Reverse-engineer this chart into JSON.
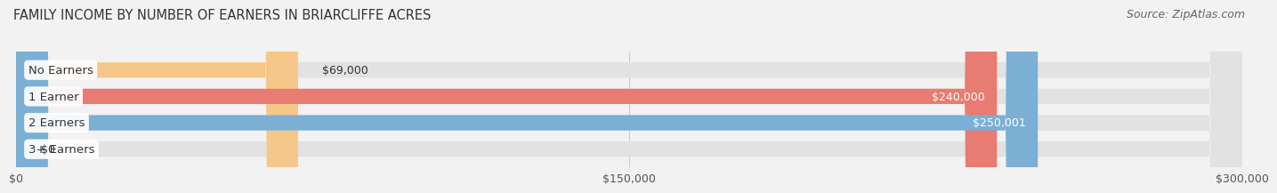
{
  "title": "FAMILY INCOME BY NUMBER OF EARNERS IN BRIARCLIFFE ACRES",
  "source": "Source: ZipAtlas.com",
  "categories": [
    "No Earners",
    "1 Earner",
    "2 Earners",
    "3+ Earners"
  ],
  "values": [
    69000,
    240000,
    250001,
    0
  ],
  "bar_colors": [
    "#f5c88a",
    "#e87b72",
    "#7bafd4",
    "#c4a8c8"
  ],
  "value_labels": [
    "$69,000",
    "$240,000",
    "$250,001",
    "$0"
  ],
  "xlim": [
    0,
    300000
  ],
  "xticks": [
    0,
    150000,
    300000
  ],
  "xtick_labels": [
    "$0",
    "$150,000",
    "$300,000"
  ],
  "background_color": "#f2f2f2",
  "bar_bg_color": "#e2e2e2",
  "bar_height": 0.58,
  "title_fontsize": 10.5,
  "source_fontsize": 9,
  "label_fontsize": 9.5,
  "value_fontsize": 9
}
